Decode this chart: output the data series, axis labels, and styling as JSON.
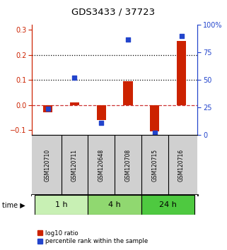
{
  "title": "GDS3433 / 37723",
  "samples": [
    "GSM120710",
    "GSM120711",
    "GSM120648",
    "GSM120708",
    "GSM120715",
    "GSM120716"
  ],
  "log10_ratio": [
    -0.03,
    0.01,
    -0.06,
    0.095,
    -0.105,
    0.255
  ],
  "percentile_rank_pct": [
    24,
    52,
    11,
    87,
    2,
    90
  ],
  "time_groups": [
    {
      "label": "1 h",
      "cols": [
        0,
        1
      ],
      "color": "#c8f0b4"
    },
    {
      "label": "4 h",
      "cols": [
        2,
        3
      ],
      "color": "#90d870"
    },
    {
      "label": "24 h",
      "cols": [
        4,
        5
      ],
      "color": "#4ec940"
    }
  ],
  "ylim_left": [
    -0.12,
    0.32
  ],
  "ylim_right": [
    0,
    100
  ],
  "yticks_left": [
    -0.1,
    0.0,
    0.1,
    0.2,
    0.3
  ],
  "yticks_right": [
    0,
    25,
    50,
    75,
    100
  ],
  "hlines": [
    0.1,
    0.2
  ],
  "bar_color": "#cc2200",
  "dot_color": "#2244cc",
  "zero_line_color": "#cc3333",
  "bar_width": 0.35,
  "legend_labels": [
    "log10 ratio",
    "percentile rank within the sample"
  ],
  "sample_bg": "#d0d0d0",
  "left_label_color": "#cc2200",
  "right_label_color": "#2244cc"
}
